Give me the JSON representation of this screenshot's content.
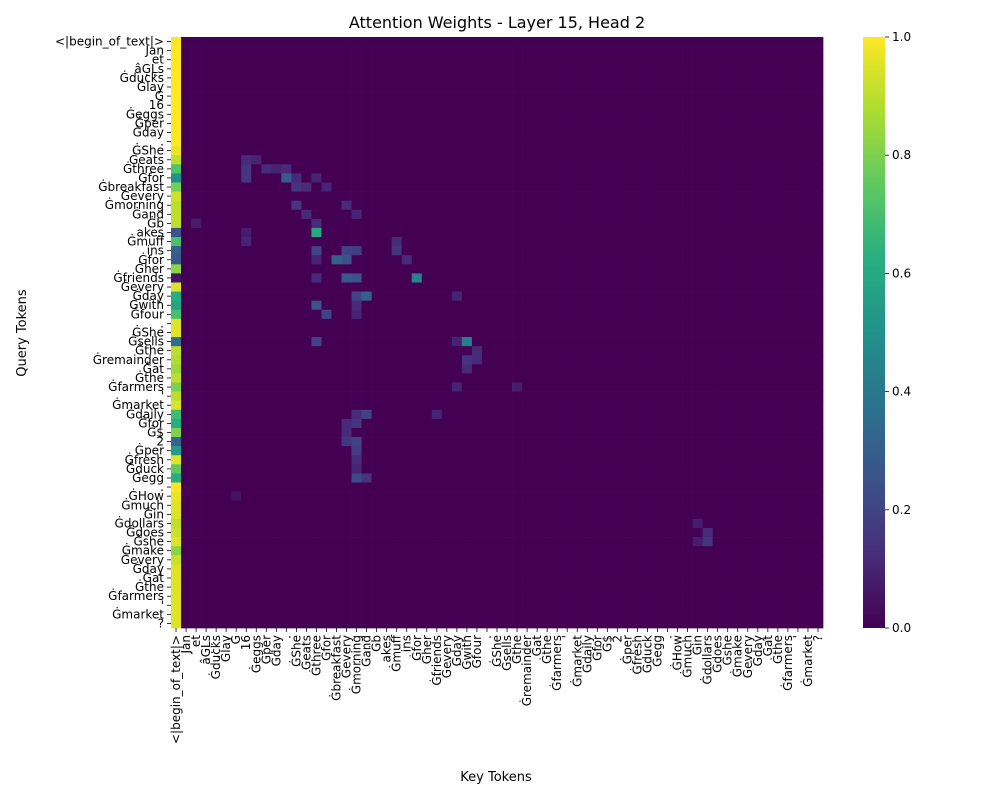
{
  "chart_data": {
    "type": "heatmap",
    "title": "Attention Weights - Layer 15, Head 2",
    "xlabel": "Key Tokens",
    "ylabel": "Query Tokens",
    "colormap": "viridis",
    "value_range": [
      0.0,
      1.0
    ],
    "colorbar_ticks": [
      "0.0",
      "0.2",
      "0.4",
      "0.6",
      "0.8",
      "1.0"
    ],
    "tokens": [
      "<|begin_of_text|>",
      "Jan",
      "et",
      "âĢĻs",
      "Ġducks",
      "Ġlay",
      "Ġ",
      "16",
      "Ġeggs",
      "Ġper",
      "Ġday",
      ".",
      "ĠShe",
      "Ġeats",
      "Ġthree",
      "Ġfor",
      "Ġbreakfast",
      "Ġevery",
      "Ġmorning",
      "Ġand",
      "Ġb",
      "akes",
      "Ġmuff",
      "ins",
      "Ġfor",
      "Ġher",
      "Ġfriends",
      "Ġevery",
      "Ġday",
      "Ġwith",
      "Ġfour",
      ".",
      "ĠShe",
      "Ġsells",
      "Ġthe",
      "Ġremainder",
      "Ġat",
      "Ġthe",
      "Ġfarmers",
      "'",
      "Ġmarket",
      "Ġdaily",
      "Ġfor",
      "Ġ$",
      "2",
      "Ġper",
      "Ġfresh",
      "Ġduck",
      "Ġegg",
      ".",
      "ĠHow",
      "Ġmuch",
      "Ġin",
      "Ġdollars",
      "Ġdoes",
      "Ġshe",
      "Ġmake",
      "Ġevery",
      "Ġday",
      "Ġat",
      "Ġthe",
      "Ġfarmers",
      "'",
      "Ġmarket",
      "?"
    ],
    "x_tick_labels": [
      "<|begin_of_text|>",
      "Jan",
      "et",
      "âĢĻs",
      "Ġducks",
      "Ġlay",
      "Ġ",
      "16",
      "Ġeggs",
      "Ġper",
      "Ġday",
      ".",
      "ĠShe",
      "Ġeats",
      "Ġthree",
      "Ġfor",
      "Ġbreakfast",
      "Ġevery",
      "Ġmorning",
      "Ġand",
      "Ġb",
      "akes",
      "Ġmuff",
      "ins",
      "Ġfor",
      "Ġher",
      "Ġfriends",
      "Ġevery",
      "Ġday",
      "Ġwith",
      "Ġfour",
      ".",
      "ĠShe",
      "Ġsells",
      "Ġthe",
      "Ġremainder",
      "Ġat",
      "Ġthe",
      "Ġfarmers",
      "'",
      "Ġmarket",
      "Ġdaily",
      "Ġfor",
      "Ġ$",
      "2",
      "Ġper",
      "Ġfresh",
      "Ġduck",
      "Ġegg",
      ".",
      "ĠHow",
      "Ġmuch",
      "Ġin",
      "Ġdollars",
      "Ġdoes",
      "Ġshe",
      "Ġmake",
      "Ġevery",
      "Ġday",
      "Ġat",
      "Ġthe",
      "Ġfarmers",
      "'",
      "Ġmarket",
      "?"
    ],
    "y_tick_labels": [
      "<|begin_of_text|>",
      "Jan",
      "et",
      "âĢĻs",
      "Ġducks",
      "Ġlay",
      "Ġ",
      "16",
      "Ġeggs",
      "Ġper",
      "Ġday",
      ".",
      "ĠShe",
      "Ġeats",
      "Ġthree",
      "Ġfor",
      "Ġbreakfast",
      "Ġevery",
      "Ġmorning",
      "Ġand",
      "Ġb",
      "akes",
      "Ġmuff",
      "ins",
      "Ġfor",
      "Ġher",
      "Ġfriends",
      "Ġevery",
      "Ġday",
      "Ġwith",
      "Ġfour",
      ".",
      "ĠShe",
      "Ġsells",
      "Ġthe",
      "Ġremainder",
      "Ġat",
      "Ġthe",
      "Ġfarmers",
      "'",
      "Ġmarket",
      "Ġdaily",
      "Ġfor",
      "Ġ$",
      "2",
      "Ġper",
      "Ġfresh",
      "Ġduck",
      "Ġegg",
      ".",
      "ĠHow",
      "Ġmuch",
      "Ġin",
      "Ġdollars",
      "Ġdoes",
      "Ġshe",
      "Ġmake",
      "Ġevery",
      "Ġday",
      "Ġat",
      "Ġthe",
      "Ġfarmers",
      "'",
      "Ġmarket",
      "?"
    ],
    "first_column_weights": [
      1.0,
      1.0,
      1.0,
      1.0,
      1.0,
      1.0,
      1.0,
      1.0,
      1.0,
      1.0,
      1.0,
      1.0,
      0.97,
      0.9,
      0.72,
      0.5,
      0.78,
      0.93,
      0.9,
      0.9,
      0.9,
      0.25,
      0.7,
      0.3,
      0.28,
      0.82,
      0.05,
      0.95,
      0.62,
      0.58,
      0.7,
      0.95,
      0.95,
      0.35,
      0.9,
      0.88,
      0.85,
      0.9,
      0.8,
      0.9,
      0.95,
      0.68,
      0.62,
      0.8,
      0.32,
      0.55,
      0.95,
      0.75,
      0.62,
      1.0,
      0.97,
      0.95,
      0.95,
      0.9,
      0.92,
      0.95,
      0.82,
      0.92,
      0.95,
      0.95,
      0.95,
      0.95,
      0.95,
      0.95,
      0.95
    ],
    "notable_weights": [
      {
        "q": 13,
        "k": 7,
        "v": 0.12
      },
      {
        "q": 13,
        "k": 8,
        "v": 0.1
      },
      {
        "q": 14,
        "k": 7,
        "v": 0.15
      },
      {
        "q": 14,
        "k": 9,
        "v": 0.12
      },
      {
        "q": 14,
        "k": 10,
        "v": 0.1
      },
      {
        "q": 14,
        "k": 11,
        "v": 0.12
      },
      {
        "q": 15,
        "k": 7,
        "v": 0.15
      },
      {
        "q": 15,
        "k": 11,
        "v": 0.28
      },
      {
        "q": 15,
        "k": 12,
        "v": 0.12
      },
      {
        "q": 15,
        "k": 14,
        "v": 0.1
      },
      {
        "q": 16,
        "k": 12,
        "v": 0.15
      },
      {
        "q": 16,
        "k": 13,
        "v": 0.12
      },
      {
        "q": 16,
        "k": 15,
        "v": 0.1
      },
      {
        "q": 18,
        "k": 12,
        "v": 0.15
      },
      {
        "q": 18,
        "k": 17,
        "v": 0.12
      },
      {
        "q": 19,
        "k": 13,
        "v": 0.12
      },
      {
        "q": 19,
        "k": 18,
        "v": 0.1
      },
      {
        "q": 20,
        "k": 14,
        "v": 0.12
      },
      {
        "q": 20,
        "k": 2,
        "v": 0.08
      },
      {
        "q": 21,
        "k": 14,
        "v": 0.6
      },
      {
        "q": 21,
        "k": 7,
        "v": 0.08
      },
      {
        "q": 22,
        "k": 7,
        "v": 0.1
      },
      {
        "q": 22,
        "k": 22,
        "v": 0.12
      },
      {
        "q": 23,
        "k": 14,
        "v": 0.2
      },
      {
        "q": 23,
        "k": 17,
        "v": 0.2
      },
      {
        "q": 23,
        "k": 18,
        "v": 0.18
      },
      {
        "q": 23,
        "k": 22,
        "v": 0.15
      },
      {
        "q": 24,
        "k": 16,
        "v": 0.3
      },
      {
        "q": 24,
        "k": 17,
        "v": 0.25
      },
      {
        "q": 24,
        "k": 14,
        "v": 0.1
      },
      {
        "q": 24,
        "k": 23,
        "v": 0.12
      },
      {
        "q": 26,
        "k": 17,
        "v": 0.28
      },
      {
        "q": 26,
        "k": 18,
        "v": 0.25
      },
      {
        "q": 26,
        "k": 24,
        "v": 0.45
      },
      {
        "q": 26,
        "k": 14,
        "v": 0.12
      },
      {
        "q": 28,
        "k": 18,
        "v": 0.2
      },
      {
        "q": 28,
        "k": 19,
        "v": 0.3
      },
      {
        "q": 28,
        "k": 28,
        "v": 0.1
      },
      {
        "q": 29,
        "k": 14,
        "v": 0.25
      },
      {
        "q": 29,
        "k": 18,
        "v": 0.12
      },
      {
        "q": 30,
        "k": 15,
        "v": 0.2
      },
      {
        "q": 30,
        "k": 18,
        "v": 0.1
      },
      {
        "q": 33,
        "k": 14,
        "v": 0.2
      },
      {
        "q": 33,
        "k": 29,
        "v": 0.42
      },
      {
        "q": 33,
        "k": 28,
        "v": 0.1
      },
      {
        "q": 34,
        "k": 30,
        "v": 0.12
      },
      {
        "q": 35,
        "k": 29,
        "v": 0.15
      },
      {
        "q": 35,
        "k": 30,
        "v": 0.12
      },
      {
        "q": 36,
        "k": 29,
        "v": 0.12
      },
      {
        "q": 38,
        "k": 28,
        "v": 0.1
      },
      {
        "q": 38,
        "k": 34,
        "v": 0.08
      },
      {
        "q": 41,
        "k": 18,
        "v": 0.12
      },
      {
        "q": 41,
        "k": 19,
        "v": 0.2
      },
      {
        "q": 41,
        "k": 26,
        "v": 0.1
      },
      {
        "q": 42,
        "k": 18,
        "v": 0.15
      },
      {
        "q": 42,
        "k": 17,
        "v": 0.12
      },
      {
        "q": 43,
        "k": 17,
        "v": 0.12
      },
      {
        "q": 44,
        "k": 17,
        "v": 0.15
      },
      {
        "q": 44,
        "k": 18,
        "v": 0.2
      },
      {
        "q": 45,
        "k": 18,
        "v": 0.18
      },
      {
        "q": 46,
        "k": 18,
        "v": 0.12
      },
      {
        "q": 47,
        "k": 18,
        "v": 0.1
      },
      {
        "q": 48,
        "k": 18,
        "v": 0.22
      },
      {
        "q": 48,
        "k": 19,
        "v": 0.15
      },
      {
        "q": 50,
        "k": 6,
        "v": 0.05
      },
      {
        "q": 53,
        "k": 52,
        "v": 0.08
      },
      {
        "q": 54,
        "k": 53,
        "v": 0.12
      },
      {
        "q": 55,
        "k": 53,
        "v": 0.15
      },
      {
        "q": 55,
        "k": 52,
        "v": 0.08
      }
    ]
  }
}
